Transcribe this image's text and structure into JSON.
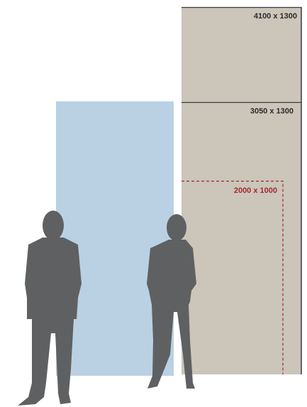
{
  "panels": [
    {
      "label": "4100 x 1300"
    },
    {
      "label": "3050 x 1300"
    },
    {
      "label": "2000 x 1000"
    }
  ]
}
